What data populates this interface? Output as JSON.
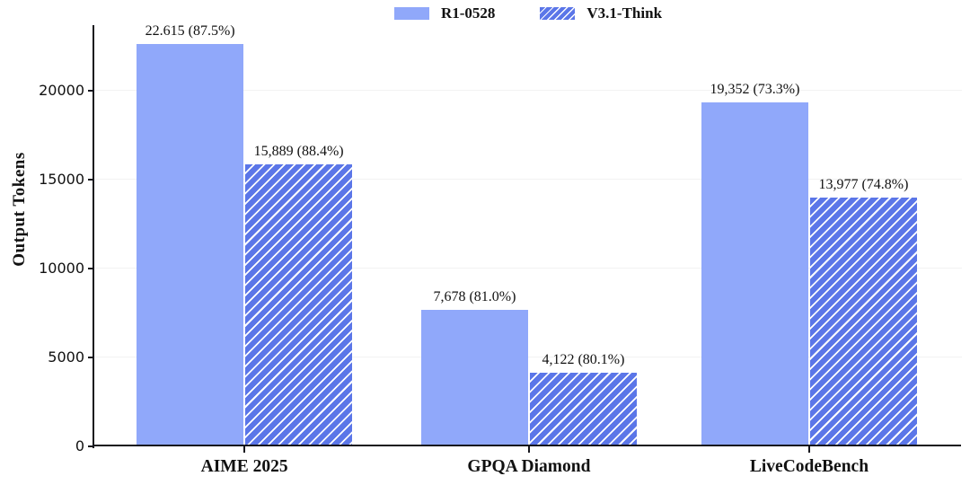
{
  "chart_data": {
    "type": "bar",
    "title": "",
    "categories": [
      "AIME 2025",
      "GPQA Diamond",
      "LiveCodeBench"
    ],
    "series": [
      {
        "name": "R1-0528",
        "color": "#90a8fa",
        "hatch": null,
        "hatch_color": null,
        "values": [
          22615,
          7678,
          19352
        ],
        "bar_labels": [
          "22.615 (87.5%)",
          "7,678 (81.0%)",
          "19,352 (73.3%)"
        ]
      },
      {
        "name": "V3.1-Think",
        "color": "#5b76e8",
        "hatch": "diagonal-forward",
        "hatch_color": "#ffffff",
        "values": [
          15889,
          4122,
          13977
        ],
        "bar_labels": [
          "15,889 (88.4%)",
          "4,122 (80.1%)",
          "13,977 (74.8%)"
        ]
      }
    ],
    "xlabel": "",
    "ylabel": "Output Tokens",
    "yticks": [
      0,
      5000,
      10000,
      15000,
      20000
    ],
    "ytick_labels": [
      "0",
      "5000",
      "10000",
      "15000",
      "20000"
    ],
    "ylim": [
      0,
      23700
    ],
    "grid": "horizontal",
    "gridline_color": "#f2f2f2",
    "axis_color": "#16161d",
    "legend_position": "top-center"
  }
}
